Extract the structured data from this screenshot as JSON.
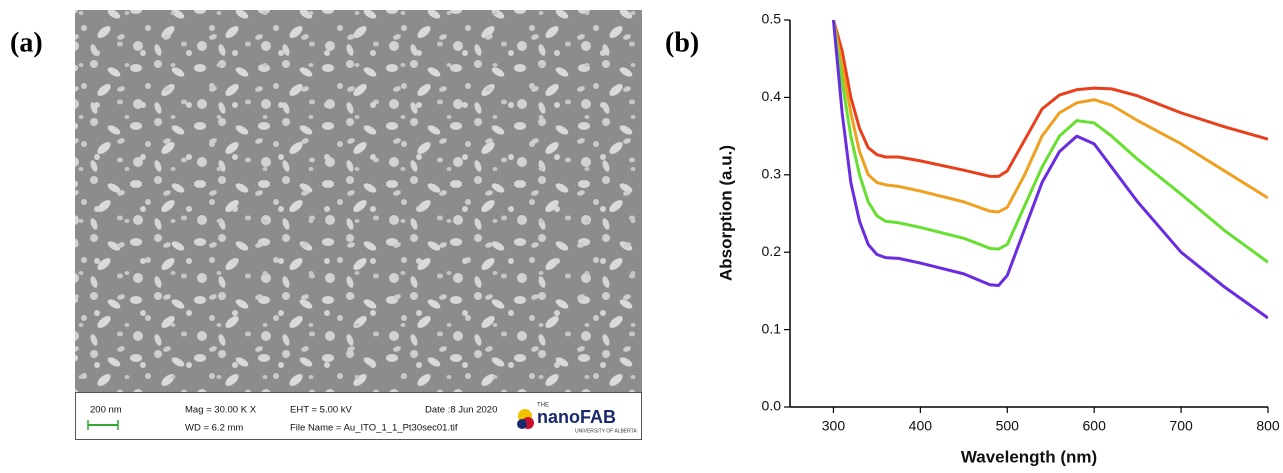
{
  "panel_labels": [
    "(a)",
    "(b)"
  ],
  "sem_image": {
    "scale_bar": "200 nm",
    "mag": "Mag =  30.00 K X",
    "wd": "WD =  6.2 mm",
    "eht": "EHT =  5.00 kV",
    "file_name": "File Name = Au_ITO_1_1_Pt30sec01.tif",
    "date": "Date :8 Jun 2020",
    "logo_the": "THE",
    "logo": "nanoFAB",
    "logo_sub": "UNIVERSITY OF ALBERTA"
  },
  "chart_data": {
    "type": "line",
    "xlabel": "Wavelength (nm)",
    "ylabel": "Absorption (a.u.)",
    "x": [
      300,
      310,
      320,
      330,
      340,
      350,
      360,
      375,
      400,
      450,
      480,
      490,
      500,
      520,
      540,
      560,
      580,
      600,
      620,
      650,
      700,
      750,
      800
    ],
    "series": [
      {
        "color": "#e8401c",
        "values": [
          0.5,
          0.46,
          0.4,
          0.36,
          0.335,
          0.326,
          0.323,
          0.323,
          0.318,
          0.306,
          0.298,
          0.298,
          0.305,
          0.345,
          0.385,
          0.403,
          0.41,
          0.412,
          0.411,
          0.402,
          0.38,
          0.362,
          0.346
        ]
      },
      {
        "color": "#f0a020",
        "values": [
          0.5,
          0.44,
          0.38,
          0.33,
          0.3,
          0.29,
          0.287,
          0.285,
          0.279,
          0.265,
          0.253,
          0.252,
          0.258,
          0.3,
          0.35,
          0.38,
          0.393,
          0.397,
          0.39,
          0.37,
          0.34,
          0.305,
          0.27
        ]
      },
      {
        "color": "#66e030",
        "values": [
          0.5,
          0.42,
          0.35,
          0.3,
          0.265,
          0.247,
          0.24,
          0.238,
          0.232,
          0.218,
          0.205,
          0.204,
          0.21,
          0.26,
          0.31,
          0.35,
          0.37,
          0.367,
          0.35,
          0.32,
          0.275,
          0.228,
          0.187
        ]
      },
      {
        "color": "#6a2ce0",
        "values": [
          0.5,
          0.38,
          0.29,
          0.24,
          0.21,
          0.197,
          0.193,
          0.192,
          0.186,
          0.172,
          0.158,
          0.157,
          0.17,
          0.23,
          0.29,
          0.33,
          0.35,
          0.34,
          0.31,
          0.265,
          0.2,
          0.155,
          0.115
        ]
      }
    ],
    "xlim": [
      250,
      800
    ],
    "ylim": [
      0,
      0.5
    ],
    "xticks": [
      300,
      400,
      500,
      600,
      700,
      800
    ],
    "yticks": [
      {
        "value": 0,
        "label": "0.0"
      },
      0.1,
      0.2,
      0.3,
      0.4,
      0.5
    ]
  }
}
